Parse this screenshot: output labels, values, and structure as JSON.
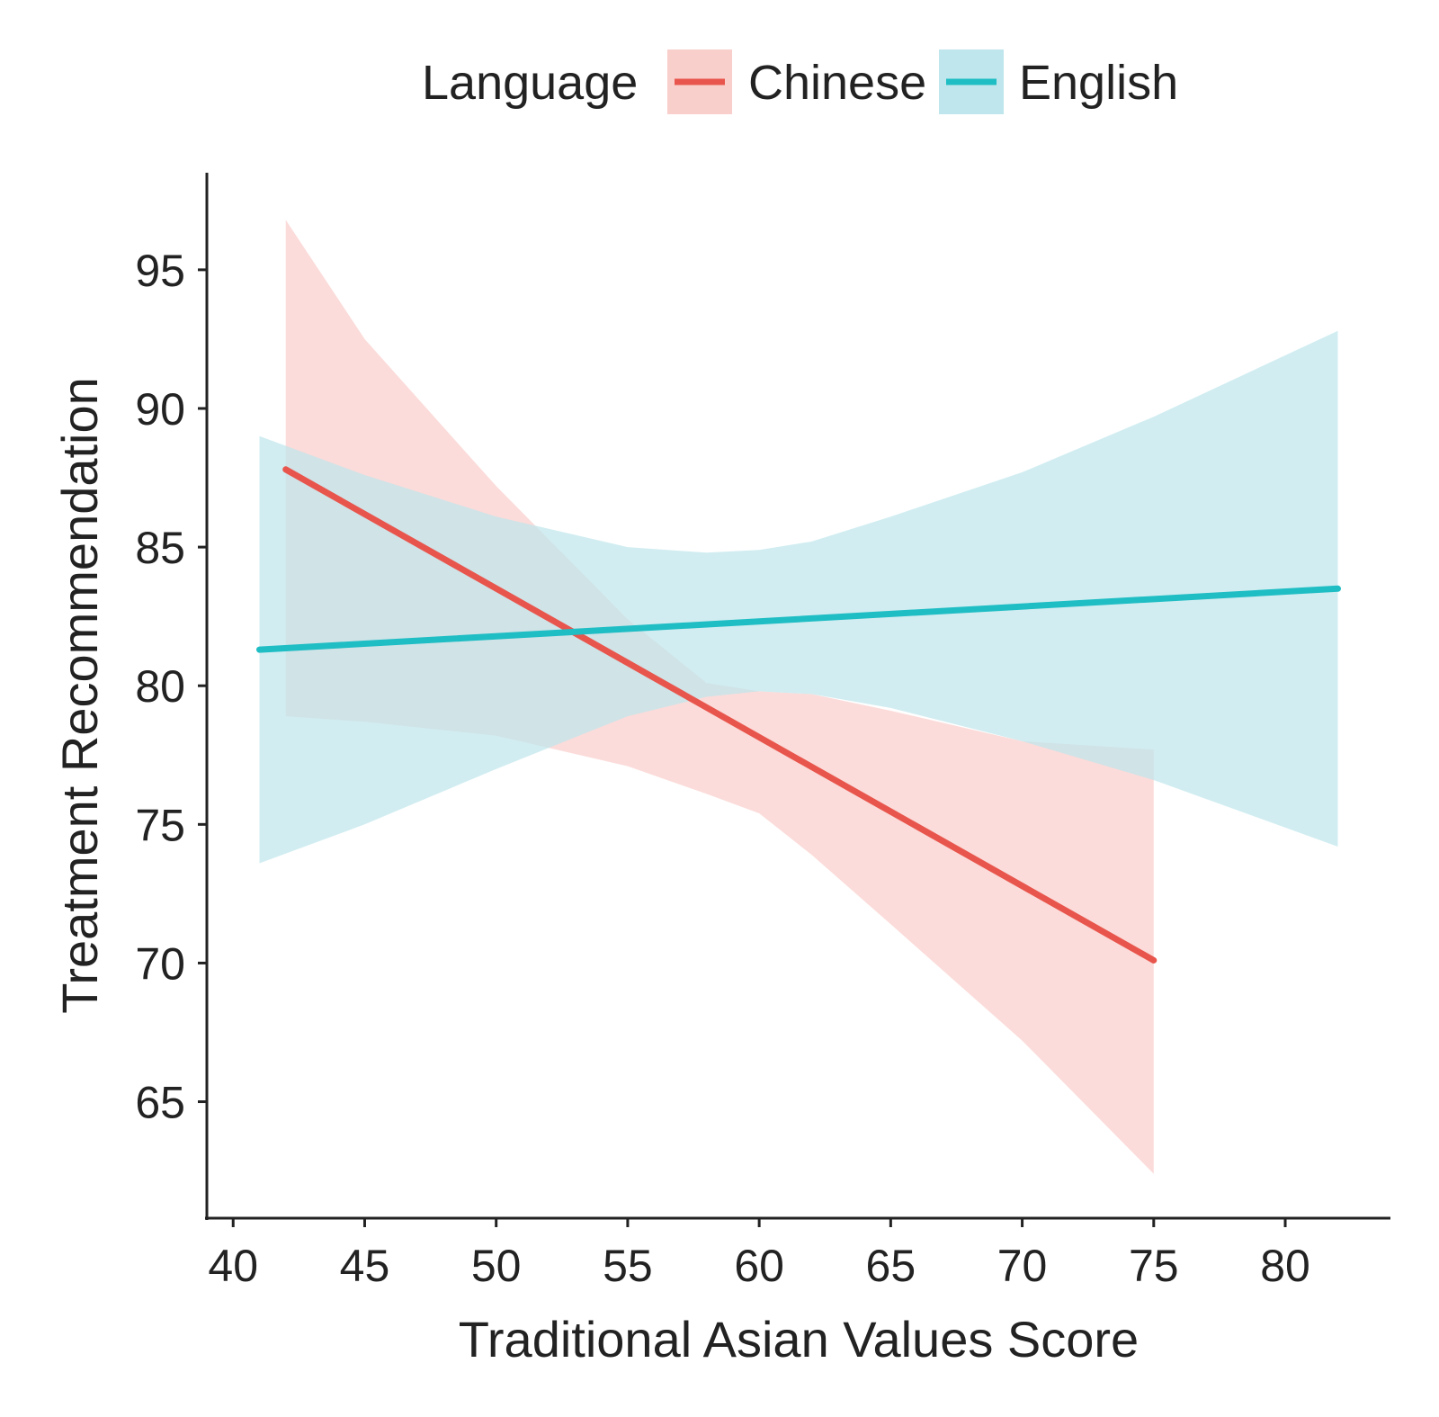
{
  "chart_data": {
    "type": "line",
    "title": "",
    "xlabel": "Traditional Asian Values Score",
    "ylabel": "Treatment Recommendation",
    "xlim": [
      39,
      84
    ],
    "ylim": [
      60.8,
      98.5
    ],
    "x_ticks": [
      40,
      45,
      50,
      55,
      60,
      65,
      70,
      75,
      80
    ],
    "y_ticks": [
      65,
      70,
      75,
      80,
      85,
      90,
      95
    ],
    "grid": false,
    "legend": {
      "title": "Language",
      "placement": "top",
      "entries": [
        "Chinese",
        "English"
      ]
    },
    "series": [
      {
        "name": "Chinese",
        "color": "#E8554C",
        "band_color": "#F9CFCC",
        "x": [
          42,
          75
        ],
        "y": [
          87.8,
          70.1
        ],
        "band_x": [
          42,
          45,
          50,
          55,
          58,
          60,
          62,
          65,
          70,
          75
        ],
        "band_upper": [
          96.8,
          92.5,
          87.2,
          82.4,
          80.1,
          79.8,
          79.7,
          79.1,
          78.0,
          77.7
        ],
        "band_lower": [
          78.9,
          78.7,
          78.2,
          77.1,
          76.1,
          75.4,
          73.9,
          71.4,
          67.2,
          62.4
        ]
      },
      {
        "name": "English",
        "color": "#1FBDC4",
        "band_color": "#BFE6EC",
        "x": [
          41,
          82
        ],
        "y": [
          81.3,
          83.5
        ],
        "band_x": [
          41,
          45,
          50,
          55,
          58,
          60,
          62,
          65,
          70,
          75,
          82
        ],
        "band_upper": [
          89.0,
          87.6,
          86.1,
          85.0,
          84.8,
          84.9,
          85.2,
          86.1,
          87.7,
          89.7,
          92.8
        ],
        "band_lower": [
          73.6,
          75.0,
          77.0,
          78.9,
          79.6,
          79.8,
          79.7,
          79.2,
          78.0,
          76.6,
          74.2
        ]
      }
    ]
  }
}
